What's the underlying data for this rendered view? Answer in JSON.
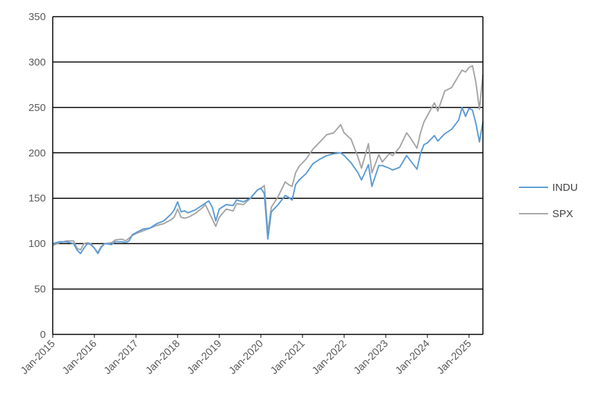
{
  "chart_data": {
    "type": "line",
    "title": "",
    "xlabel": "",
    "ylabel": "",
    "ylim": [
      0,
      350
    ],
    "yticks": [
      0,
      50,
      100,
      150,
      200,
      250,
      300,
      350
    ],
    "xlim": [
      "2015-01",
      "2025-05"
    ],
    "xticks": [
      "Jan-2015",
      "Jan-2016",
      "Jan-2017",
      "Jan-2018",
      "Jan-2019",
      "Jan-2020",
      "Jan-2021",
      "Jan-2022",
      "Jan-2023",
      "Jan-2024",
      "Jan-2025"
    ],
    "grid": "horizontal",
    "legend_position": "right",
    "series": [
      {
        "name": "INDU",
        "color": "#5B9BD5",
        "points": [
          [
            "2015-01",
            100
          ],
          [
            "2015-03",
            102
          ],
          [
            "2015-05",
            102
          ],
          [
            "2015-07",
            100
          ],
          [
            "2015-08",
            93
          ],
          [
            "2015-09",
            89
          ],
          [
            "2015-10",
            95
          ],
          [
            "2015-11",
            100
          ],
          [
            "2015-12",
            99
          ],
          [
            "2016-01",
            95
          ],
          [
            "2016-02",
            89
          ],
          [
            "2016-03",
            96
          ],
          [
            "2016-04",
            100
          ],
          [
            "2016-06",
            99
          ],
          [
            "2016-07",
            102
          ],
          [
            "2016-09",
            102
          ],
          [
            "2016-10",
            101
          ],
          [
            "2016-11",
            103
          ],
          [
            "2016-12",
            110
          ],
          [
            "2017-01",
            112
          ],
          [
            "2017-03",
            116
          ],
          [
            "2017-05",
            117
          ],
          [
            "2017-07",
            122
          ],
          [
            "2017-09",
            125
          ],
          [
            "2017-11",
            132
          ],
          [
            "2017-12",
            137
          ],
          [
            "2018-01",
            146
          ],
          [
            "2018-02",
            135
          ],
          [
            "2018-03",
            136
          ],
          [
            "2018-04",
            134
          ],
          [
            "2018-06",
            137
          ],
          [
            "2018-08",
            142
          ],
          [
            "2018-10",
            147
          ],
          [
            "2018-11",
            140
          ],
          [
            "2018-12",
            125
          ],
          [
            "2019-01",
            138
          ],
          [
            "2019-03",
            143
          ],
          [
            "2019-05",
            142
          ],
          [
            "2019-06",
            148
          ],
          [
            "2019-08",
            146
          ],
          [
            "2019-10",
            150
          ],
          [
            "2019-12",
            159
          ],
          [
            "2020-01",
            161
          ],
          [
            "2020-02",
            155
          ],
          [
            "2020-03",
            105
          ],
          [
            "2020-04",
            135
          ],
          [
            "2020-06",
            143
          ],
          [
            "2020-08",
            153
          ],
          [
            "2020-09",
            151
          ],
          [
            "2020-10",
            148
          ],
          [
            "2020-11",
            165
          ],
          [
            "2020-12",
            170
          ],
          [
            "2021-02",
            177
          ],
          [
            "2021-04",
            188
          ],
          [
            "2021-06",
            193
          ],
          [
            "2021-08",
            197
          ],
          [
            "2021-10",
            199
          ],
          [
            "2021-12",
            200
          ],
          [
            "2022-01",
            197
          ],
          [
            "2022-03",
            189
          ],
          [
            "2022-05",
            178
          ],
          [
            "2022-06",
            170
          ],
          [
            "2022-08",
            187
          ],
          [
            "2022-09",
            163
          ],
          [
            "2022-11",
            186
          ],
          [
            "2022-12",
            186
          ],
          [
            "2023-02",
            183
          ],
          [
            "2023-03",
            181
          ],
          [
            "2023-05",
            184
          ],
          [
            "2023-07",
            197
          ],
          [
            "2023-08",
            192
          ],
          [
            "2023-10",
            182
          ],
          [
            "2023-11",
            199
          ],
          [
            "2023-12",
            209
          ],
          [
            "2024-01",
            211
          ],
          [
            "2024-03",
            219
          ],
          [
            "2024-04",
            213
          ],
          [
            "2024-06",
            221
          ],
          [
            "2024-08",
            226
          ],
          [
            "2024-10",
            236
          ],
          [
            "2024-11",
            250
          ],
          [
            "2024-12",
            240
          ],
          [
            "2025-01",
            249
          ],
          [
            "2025-02",
            247
          ],
          [
            "2025-03",
            232
          ],
          [
            "2025-04",
            212
          ],
          [
            "2025-05",
            234
          ]
        ]
      },
      {
        "name": "SPX",
        "color": "#A5A5A5",
        "points": [
          [
            "2015-01",
            98
          ],
          [
            "2015-03",
            101
          ],
          [
            "2015-05",
            103
          ],
          [
            "2015-07",
            103
          ],
          [
            "2015-08",
            95
          ],
          [
            "2015-09",
            93
          ],
          [
            "2015-10",
            100
          ],
          [
            "2015-11",
            101
          ],
          [
            "2015-12",
            100
          ],
          [
            "2016-01",
            95
          ],
          [
            "2016-02",
            90
          ],
          [
            "2016-03",
            97
          ],
          [
            "2016-04",
            100
          ],
          [
            "2016-06",
            101
          ],
          [
            "2016-07",
            104
          ],
          [
            "2016-09",
            105
          ],
          [
            "2016-10",
            103
          ],
          [
            "2016-11",
            106
          ],
          [
            "2016-12",
            109
          ],
          [
            "2017-01",
            111
          ],
          [
            "2017-03",
            114
          ],
          [
            "2017-05",
            117
          ],
          [
            "2017-07",
            120
          ],
          [
            "2017-09",
            122
          ],
          [
            "2017-11",
            126
          ],
          [
            "2017-12",
            129
          ],
          [
            "2018-01",
            138
          ],
          [
            "2018-02",
            129
          ],
          [
            "2018-03",
            128
          ],
          [
            "2018-04",
            129
          ],
          [
            "2018-06",
            133
          ],
          [
            "2018-08",
            139
          ],
          [
            "2018-09",
            143
          ],
          [
            "2018-10",
            135
          ],
          [
            "2018-12",
            119
          ],
          [
            "2019-01",
            129
          ],
          [
            "2019-03",
            138
          ],
          [
            "2019-05",
            136
          ],
          [
            "2019-06",
            144
          ],
          [
            "2019-08",
            143
          ],
          [
            "2019-10",
            150
          ],
          [
            "2019-12",
            159
          ],
          [
            "2020-01",
            161
          ],
          [
            "2020-02",
            164
          ],
          [
            "2020-03",
            112
          ],
          [
            "2020-04",
            140
          ],
          [
            "2020-06",
            152
          ],
          [
            "2020-08",
            168
          ],
          [
            "2020-09",
            165
          ],
          [
            "2020-10",
            163
          ],
          [
            "2020-11",
            178
          ],
          [
            "2020-12",
            185
          ],
          [
            "2021-02",
            193
          ],
          [
            "2021-04",
            204
          ],
          [
            "2021-06",
            212
          ],
          [
            "2021-08",
            220
          ],
          [
            "2021-10",
            222
          ],
          [
            "2021-12",
            231
          ],
          [
            "2022-01",
            222
          ],
          [
            "2022-03",
            215
          ],
          [
            "2022-05",
            195
          ],
          [
            "2022-06",
            183
          ],
          [
            "2022-08",
            210
          ],
          [
            "2022-09",
            178
          ],
          [
            "2022-11",
            198
          ],
          [
            "2022-12",
            190
          ],
          [
            "2023-02",
            199
          ],
          [
            "2023-03",
            197
          ],
          [
            "2023-05",
            206
          ],
          [
            "2023-07",
            222
          ],
          [
            "2023-08",
            217
          ],
          [
            "2023-10",
            205
          ],
          [
            "2023-11",
            222
          ],
          [
            "2023-12",
            234
          ],
          [
            "2024-01",
            241
          ],
          [
            "2024-03",
            255
          ],
          [
            "2024-04",
            246
          ],
          [
            "2024-06",
            268
          ],
          [
            "2024-08",
            272
          ],
          [
            "2024-10",
            285
          ],
          [
            "2024-11",
            291
          ],
          [
            "2024-12",
            289
          ],
          [
            "2025-01",
            294
          ],
          [
            "2025-02",
            296
          ],
          [
            "2025-03",
            277
          ],
          [
            "2025-04",
            248
          ],
          [
            "2025-05",
            286
          ]
        ]
      }
    ]
  }
}
